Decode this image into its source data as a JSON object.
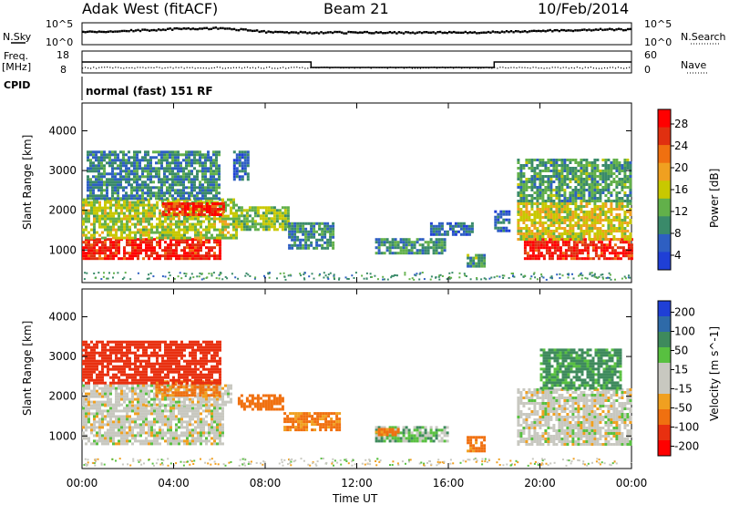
{
  "header": {
    "title": "Adak West (fitACF)",
    "beam": "Beam 21",
    "date": "10/Feb/2014"
  },
  "noise_panel": {
    "left_label": "N.Sky",
    "right_label": "N.Search",
    "y_top": "10^5",
    "y_bottom": "10^0"
  },
  "freq_panel": {
    "left_label_1": "Freq.",
    "left_label_2": "[MHz]",
    "left_y_top": "18",
    "left_y_bottom": "8",
    "right_label": "Nave",
    "right_y_top": "60",
    "right_y_bottom": "0"
  },
  "cpid_panel": {
    "label": "CPID",
    "program": "normal (fast) 151 RF"
  },
  "x_axis": {
    "label": "Time UT",
    "ticks": [
      "00:00",
      "04:00",
      "08:00",
      "12:00",
      "16:00",
      "20:00",
      "00:00"
    ]
  },
  "colors": {
    "power_scale": [
      "#1f3fd6",
      "#2e5fc2",
      "#3a8a6a",
      "#62b04a",
      "#c8c800",
      "#f0a020",
      "#f07010",
      "#e03010",
      "#ff0000"
    ],
    "velocity_scale": [
      "#1f3fd6",
      "#2e6aa8",
      "#3e8a5c",
      "#58c040",
      "#c8c8c0",
      "#c8c8c0",
      "#f0a020",
      "#f07010",
      "#e83010",
      "#ff0000"
    ]
  },
  "chart_data": [
    {
      "type": "heatmap",
      "title": "Adak West (fitACF) Beam 21 10/Feb/2014",
      "quantity": "Power",
      "colorbar_label": "Power [dB]",
      "colorbar_ticks": [
        "28",
        "24",
        "20",
        "16",
        "12",
        "8",
        "4"
      ],
      "xlabel": "Time UT",
      "ylabel": "Slant Range [km]",
      "yticks": [
        "4000",
        "3000",
        "2000",
        "1000"
      ],
      "xlim_hours": [
        0,
        24
      ],
      "ylim_km": [
        180,
        4700
      ],
      "regions": [
        {
          "t0": 0.0,
          "t1": 6.0,
          "r0": 800,
          "r1": 1300,
          "level": 27
        },
        {
          "t0": 0.0,
          "t1": 6.8,
          "r0": 1300,
          "r1": 2300,
          "level": 14
        },
        {
          "t0": 3.5,
          "t1": 6.2,
          "r0": 1900,
          "r1": 2200,
          "level": 26
        },
        {
          "t0": 0.2,
          "t1": 6.0,
          "r0": 2300,
          "r1": 3500,
          "level": 8
        },
        {
          "t0": 6.8,
          "t1": 9.0,
          "r0": 1500,
          "r1": 2100,
          "level": 13
        },
        {
          "t0": 9.0,
          "t1": 11.0,
          "r0": 1050,
          "r1": 1700,
          "level": 8
        },
        {
          "t0": 12.8,
          "t1": 15.8,
          "r0": 900,
          "r1": 1300,
          "level": 9
        },
        {
          "t0": 15.2,
          "t1": 17.0,
          "r0": 1400,
          "r1": 1700,
          "level": 6
        },
        {
          "t0": 16.8,
          "t1": 17.6,
          "r0": 600,
          "r1": 900,
          "level": 10
        },
        {
          "t0": 18.0,
          "t1": 18.6,
          "r0": 1500,
          "r1": 2000,
          "level": 5
        },
        {
          "t0": 19.3,
          "t1": 24.0,
          "r0": 800,
          "r1": 1300,
          "level": 27
        },
        {
          "t0": 19.0,
          "t1": 24.0,
          "r0": 1300,
          "r1": 2200,
          "level": 16
        },
        {
          "t0": 19.0,
          "t1": 24.0,
          "r0": 2200,
          "r1": 3300,
          "level": 10
        },
        {
          "t0": 6.6,
          "t1": 7.2,
          "r0": 2800,
          "r1": 3500,
          "level": 6
        }
      ]
    },
    {
      "type": "heatmap",
      "quantity": "Velocity",
      "colorbar_label": "Velocity [m s^-1]",
      "colorbar_ticks": [
        "200",
        "100",
        "50",
        "15",
        "-15",
        "-50",
        "-100",
        "-200"
      ],
      "xlabel": "Time UT",
      "ylabel": "Slant Range [km]",
      "yticks": [
        "4000",
        "3000",
        "2000",
        "1000"
      ],
      "xlim_hours": [
        0,
        24
      ],
      "ylim_km": [
        180,
        4700
      ],
      "regions": [
        {
          "t0": 0.0,
          "t1": 6.2,
          "r0": 800,
          "r1": 1800,
          "level": 0
        },
        {
          "t0": 0.0,
          "t1": 6.5,
          "r0": 1800,
          "r1": 2300,
          "level": 0
        },
        {
          "t0": 3.2,
          "t1": 6.0,
          "r0": 2000,
          "r1": 2400,
          "level": -60
        },
        {
          "t0": 6.8,
          "t1": 8.8,
          "r0": 1650,
          "r1": 2050,
          "level": -80
        },
        {
          "t0": 8.8,
          "t1": 11.2,
          "r0": 1150,
          "r1": 1600,
          "level": -60
        },
        {
          "t0": 12.8,
          "t1": 16.0,
          "r0": 900,
          "r1": 1250,
          "level": 20
        },
        {
          "t0": 12.8,
          "t1": 13.8,
          "r0": 1000,
          "r1": 1200,
          "level": -60
        },
        {
          "t0": 16.8,
          "t1": 17.6,
          "r0": 600,
          "r1": 1000,
          "level": -60
        },
        {
          "t0": 19.0,
          "t1": 24.0,
          "r0": 800,
          "r1": 2200,
          "level": 0
        },
        {
          "t0": 20.0,
          "t1": 23.5,
          "r0": 2200,
          "r1": 3200,
          "level": 40
        },
        {
          "t0": 0.0,
          "t1": 6.0,
          "r0": 2300,
          "r1": 3400,
          "level": -120
        }
      ]
    },
    {
      "type": "line",
      "quantity": "Noise",
      "series": [
        {
          "name": "N.Sky",
          "y": [
            3.2,
            3.3,
            3.4,
            3.6,
            3.8,
            3.9,
            4.0,
            3.6,
            3.2,
            3.0,
            3.0,
            3.0,
            3.0,
            3.0,
            3.0,
            3.0,
            3.0,
            3.0,
            3.1,
            3.2,
            3.4,
            3.5,
            3.6,
            3.7,
            3.7
          ]
        }
      ],
      "x_hours": [
        0,
        1,
        2,
        3,
        4,
        5,
        6,
        7,
        8,
        9,
        10,
        11,
        12,
        13,
        14,
        15,
        16,
        17,
        18,
        19,
        20,
        21,
        22,
        23,
        24
      ]
    },
    {
      "type": "line",
      "quantity": "Frequency",
      "series": [
        {
          "name": "Freq.",
          "x_hours": [
            0,
            10,
            10,
            18,
            18,
            24
          ],
          "y": [
            13.0,
            13.0,
            10.5,
            10.5,
            13.0,
            13.0
          ]
        }
      ]
    }
  ]
}
